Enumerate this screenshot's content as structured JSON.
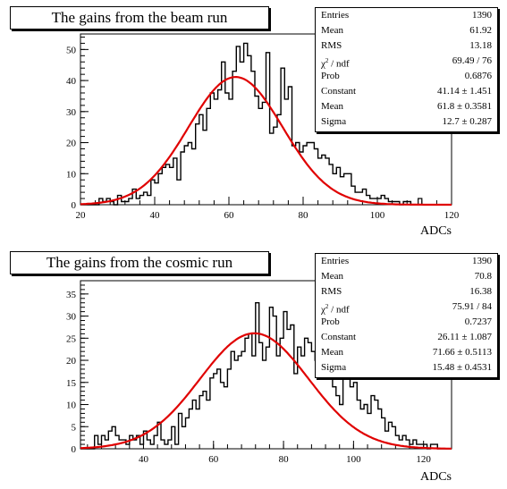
{
  "chart_data": [
    {
      "type": "histogram",
      "title": "The gains from the beam run",
      "xlabel": "ADCs",
      "ylabel": "",
      "xlim": [
        20,
        120
      ],
      "ylim": [
        0,
        55
      ],
      "xticks": [
        20,
        40,
        60,
        80,
        100,
        120
      ],
      "yticks": [
        0,
        10,
        20,
        30,
        40,
        50
      ],
      "bin_width": 1,
      "bins_start": 20,
      "counts": [
        0,
        0,
        0,
        0,
        0,
        2,
        1,
        2,
        1,
        0,
        3,
        1,
        1,
        2,
        5,
        2,
        3,
        4,
        3,
        8,
        7,
        10,
        12,
        13,
        12,
        15,
        8,
        17,
        19,
        20,
        18,
        26,
        29,
        24,
        31,
        36,
        34,
        37,
        46,
        36,
        34,
        43,
        51,
        46,
        52,
        48,
        43,
        35,
        31,
        33,
        49,
        23,
        25,
        29,
        44,
        34,
        38,
        19,
        20,
        17,
        19,
        20,
        20,
        18,
        15,
        16,
        15,
        13,
        10,
        12,
        9,
        10,
        10,
        6,
        4,
        4,
        5,
        3,
        2,
        2,
        2,
        3,
        2,
        1,
        1,
        1,
        0,
        1,
        1,
        0,
        0,
        0,
        0,
        0,
        0,
        0,
        0,
        0,
        0,
        0
      ],
      "extra_spike": {
        "x": 111,
        "count": 2
      },
      "fit": {
        "constant": 41.14,
        "mean": 61.8,
        "sigma": 12.7,
        "color": "#e00000"
      },
      "stats": [
        {
          "label": "Entries",
          "value": "1390"
        },
        {
          "label": "Mean",
          "value": "61.92"
        },
        {
          "label": "RMS",
          "value": "13.18"
        },
        {
          "label": "χ",
          "sup": "2",
          "label_rest": " / ndf",
          "value": "69.49 / 76"
        },
        {
          "label": "Prob",
          "value": "0.6876"
        },
        {
          "label": "Constant",
          "value": "41.14 ± 1.451"
        },
        {
          "label": "Mean",
          "value": "61.8 ± 0.3581"
        },
        {
          "label": "Sigma",
          "value": "12.7 ± 0.287"
        }
      ]
    },
    {
      "type": "histogram",
      "title": "The gains from the cosmic run",
      "xlabel": "ADCs",
      "ylabel": "",
      "xlim": [
        22,
        128
      ],
      "ylim": [
        0,
        38
      ],
      "xticks": [
        40,
        60,
        80,
        100,
        120
      ],
      "yticks": [
        0,
        5,
        10,
        15,
        20,
        25,
        30,
        35
      ],
      "bin_width": 1,
      "bins_start": 22,
      "counts": [
        0,
        0,
        0,
        0,
        3,
        1,
        3,
        2,
        4,
        5,
        3,
        2,
        2,
        1,
        3,
        2,
        3,
        1,
        4,
        2,
        1,
        3,
        6,
        2,
        1,
        2,
        5,
        1,
        8,
        5,
        7,
        9,
        11,
        9,
        12,
        13,
        11,
        16,
        17,
        18,
        15,
        14,
        18,
        22,
        20,
        21,
        22,
        25,
        26,
        21,
        33,
        24,
        20,
        23,
        32,
        30,
        21,
        25,
        31,
        27,
        28,
        17,
        23,
        21,
        25,
        24,
        22,
        20,
        21,
        17,
        20,
        18,
        14,
        12,
        10,
        19,
        17,
        14,
        15,
        11,
        9,
        10,
        8,
        12,
        11,
        9,
        7,
        4,
        6,
        5,
        3,
        2,
        3,
        2,
        1,
        2,
        1,
        1,
        1,
        0,
        1,
        1,
        0,
        0,
        0,
        0
      ],
      "fit": {
        "constant": 26.11,
        "mean": 71.66,
        "sigma": 15.48,
        "color": "#e00000"
      },
      "stats": [
        {
          "label": "Entries",
          "value": "1390"
        },
        {
          "label": "Mean",
          "value": "70.8"
        },
        {
          "label": "RMS",
          "value": "16.38"
        },
        {
          "label": "χ",
          "sup": "2",
          "label_rest": " / ndf",
          "value": "75.91 / 84"
        },
        {
          "label": "Prob",
          "value": "0.7237"
        },
        {
          "label": "Constant",
          "value": "26.11 ± 1.087"
        },
        {
          "label": "Mean",
          "value": "71.66 ± 0.5113"
        },
        {
          "label": "Sigma",
          "value": "15.48 ± 0.4531"
        }
      ]
    }
  ]
}
